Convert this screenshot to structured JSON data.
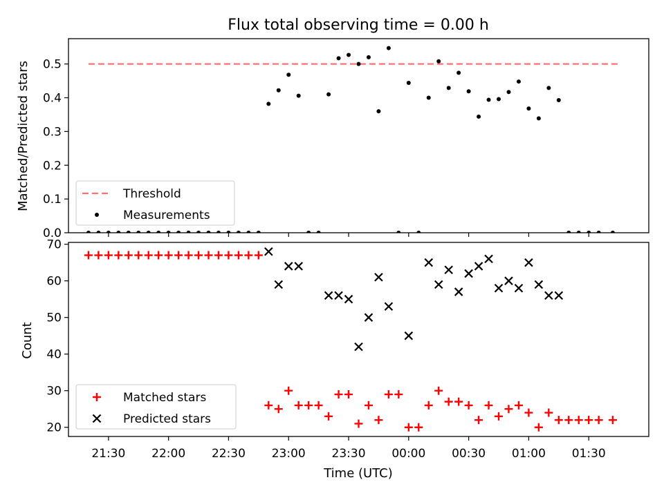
{
  "chart_data": [
    {
      "type": "scatter",
      "title": "Flux total observing time = 0.00 h",
      "xlabel": "",
      "ylabel": "Matched/Predicted stars",
      "ylim": [
        0,
        0.575
      ],
      "xlim": [
        "21:10",
        "02:00"
      ],
      "x_ticks": [
        "21:30",
        "22:00",
        "22:30",
        "23:00",
        "23:30",
        "00:00",
        "00:30",
        "01:00",
        "01:30"
      ],
      "y_ticks": [
        "0.0",
        "0.1",
        "0.2",
        "0.3",
        "0.4",
        "0.5"
      ],
      "legend": "lower-left",
      "series": [
        {
          "name": "Threshold",
          "kind": "dashed-line",
          "color": "#ff7070",
          "points": [
            [
              "21:20",
              0.5
            ],
            [
              "01:45",
              0.5
            ]
          ]
        },
        {
          "name": "Measurements",
          "kind": "dot",
          "color": "#000000",
          "points": [
            [
              "21:20",
              0.0
            ],
            [
              "21:25",
              0.0
            ],
            [
              "21:30",
              0.0
            ],
            [
              "21:35",
              0.0
            ],
            [
              "21:40",
              0.0
            ],
            [
              "21:45",
              0.0
            ],
            [
              "21:50",
              0.0
            ],
            [
              "21:55",
              0.0
            ],
            [
              "22:00",
              0.0
            ],
            [
              "22:05",
              0.0
            ],
            [
              "22:10",
              0.0
            ],
            [
              "22:15",
              0.0
            ],
            [
              "22:20",
              0.0
            ],
            [
              "22:25",
              0.0
            ],
            [
              "22:30",
              0.0
            ],
            [
              "22:35",
              0.0
            ],
            [
              "22:40",
              0.0
            ],
            [
              "22:45",
              0.0
            ],
            [
              "22:50",
              0.382
            ],
            [
              "22:55",
              0.422
            ],
            [
              "23:00",
              0.468
            ],
            [
              "23:05",
              0.406
            ],
            [
              "23:10",
              0.0
            ],
            [
              "23:15",
              0.0
            ],
            [
              "23:20",
              0.41
            ],
            [
              "23:25",
              0.517
            ],
            [
              "23:30",
              0.527
            ],
            [
              "23:35",
              0.5
            ],
            [
              "23:40",
              0.52
            ],
            [
              "23:45",
              0.36
            ],
            [
              "23:50",
              0.547
            ],
            [
              "23:55",
              0.0
            ],
            [
              "00:00",
              0.444
            ],
            [
              "00:05",
              0.0
            ],
            [
              "00:10",
              0.4
            ],
            [
              "00:15",
              0.508
            ],
            [
              "00:20",
              0.429
            ],
            [
              "00:25",
              0.474
            ],
            [
              "00:30",
              0.419
            ],
            [
              "00:35",
              0.344
            ],
            [
              "00:40",
              0.394
            ],
            [
              "00:45",
              0.396
            ],
            [
              "00:50",
              0.417
            ],
            [
              "00:55",
              0.448
            ],
            [
              "01:00",
              0.368
            ],
            [
              "01:05",
              0.339
            ],
            [
              "01:10",
              0.429
            ],
            [
              "01:15",
              0.393
            ],
            [
              "01:20",
              0.0
            ],
            [
              "01:25",
              0.0
            ],
            [
              "01:30",
              0.0
            ],
            [
              "01:35",
              0.0
            ],
            [
              "01:42",
              0.0
            ]
          ]
        }
      ]
    },
    {
      "type": "scatter",
      "title": "",
      "xlabel": "Time (UTC)",
      "ylabel": "Count",
      "ylim": [
        17.5,
        70.5
      ],
      "xlim": [
        "21:10",
        "02:00"
      ],
      "x_ticks": [
        "21:30",
        "22:00",
        "22:30",
        "23:00",
        "23:30",
        "00:00",
        "00:30",
        "01:00",
        "01:30"
      ],
      "y_ticks": [
        "20",
        "30",
        "40",
        "50",
        "60",
        "70"
      ],
      "legend": "lower-left",
      "series": [
        {
          "name": "Matched stars",
          "kind": "plus",
          "color": "#ff0000",
          "points": [
            [
              "21:20",
              67
            ],
            [
              "21:25",
              67
            ],
            [
              "21:30",
              67
            ],
            [
              "21:35",
              67
            ],
            [
              "21:40",
              67
            ],
            [
              "21:45",
              67
            ],
            [
              "21:50",
              67
            ],
            [
              "21:55",
              67
            ],
            [
              "22:00",
              67
            ],
            [
              "22:05",
              67
            ],
            [
              "22:10",
              67
            ],
            [
              "22:15",
              67
            ],
            [
              "22:20",
              67
            ],
            [
              "22:25",
              67
            ],
            [
              "22:30",
              67
            ],
            [
              "22:35",
              67
            ],
            [
              "22:40",
              67
            ],
            [
              "22:45",
              67
            ],
            [
              "22:50",
              26
            ],
            [
              "22:55",
              25
            ],
            [
              "23:00",
              30
            ],
            [
              "23:05",
              26
            ],
            [
              "23:10",
              26
            ],
            [
              "23:15",
              26
            ],
            [
              "23:20",
              23
            ],
            [
              "23:25",
              29
            ],
            [
              "23:30",
              29
            ],
            [
              "23:35",
              21
            ],
            [
              "23:40",
              26
            ],
            [
              "23:45",
              22
            ],
            [
              "23:50",
              29
            ],
            [
              "23:55",
              29
            ],
            [
              "00:00",
              20
            ],
            [
              "00:05",
              20
            ],
            [
              "00:10",
              26
            ],
            [
              "00:15",
              30
            ],
            [
              "00:20",
              27
            ],
            [
              "00:25",
              27
            ],
            [
              "00:30",
              26
            ],
            [
              "00:35",
              22
            ],
            [
              "00:40",
              26
            ],
            [
              "00:45",
              23
            ],
            [
              "00:50",
              25
            ],
            [
              "00:55",
              26
            ],
            [
              "01:00",
              24
            ],
            [
              "01:05",
              20
            ],
            [
              "01:10",
              24
            ],
            [
              "01:15",
              22
            ],
            [
              "01:20",
              22
            ],
            [
              "01:25",
              22
            ],
            [
              "01:30",
              22
            ],
            [
              "01:35",
              22
            ],
            [
              "01:42",
              22
            ]
          ]
        },
        {
          "name": "Predicted stars",
          "kind": "x",
          "color": "#000000",
          "points": [
            [
              "22:50",
              68
            ],
            [
              "22:55",
              59
            ],
            [
              "23:00",
              64
            ],
            [
              "23:05",
              64
            ],
            [
              "23:20",
              56
            ],
            [
              "23:25",
              56
            ],
            [
              "23:30",
              55
            ],
            [
              "23:35",
              42
            ],
            [
              "23:40",
              50
            ],
            [
              "23:45",
              61
            ],
            [
              "23:50",
              53
            ],
            [
              "00:00",
              45
            ],
            [
              "00:10",
              65
            ],
            [
              "00:15",
              59
            ],
            [
              "00:20",
              63
            ],
            [
              "00:25",
              57
            ],
            [
              "00:30",
              62
            ],
            [
              "00:35",
              64
            ],
            [
              "00:40",
              66
            ],
            [
              "00:45",
              58
            ],
            [
              "00:50",
              60
            ],
            [
              "00:55",
              58
            ],
            [
              "01:00",
              65
            ],
            [
              "01:05",
              59
            ],
            [
              "01:10",
              56
            ],
            [
              "01:15",
              56
            ]
          ]
        }
      ]
    }
  ]
}
